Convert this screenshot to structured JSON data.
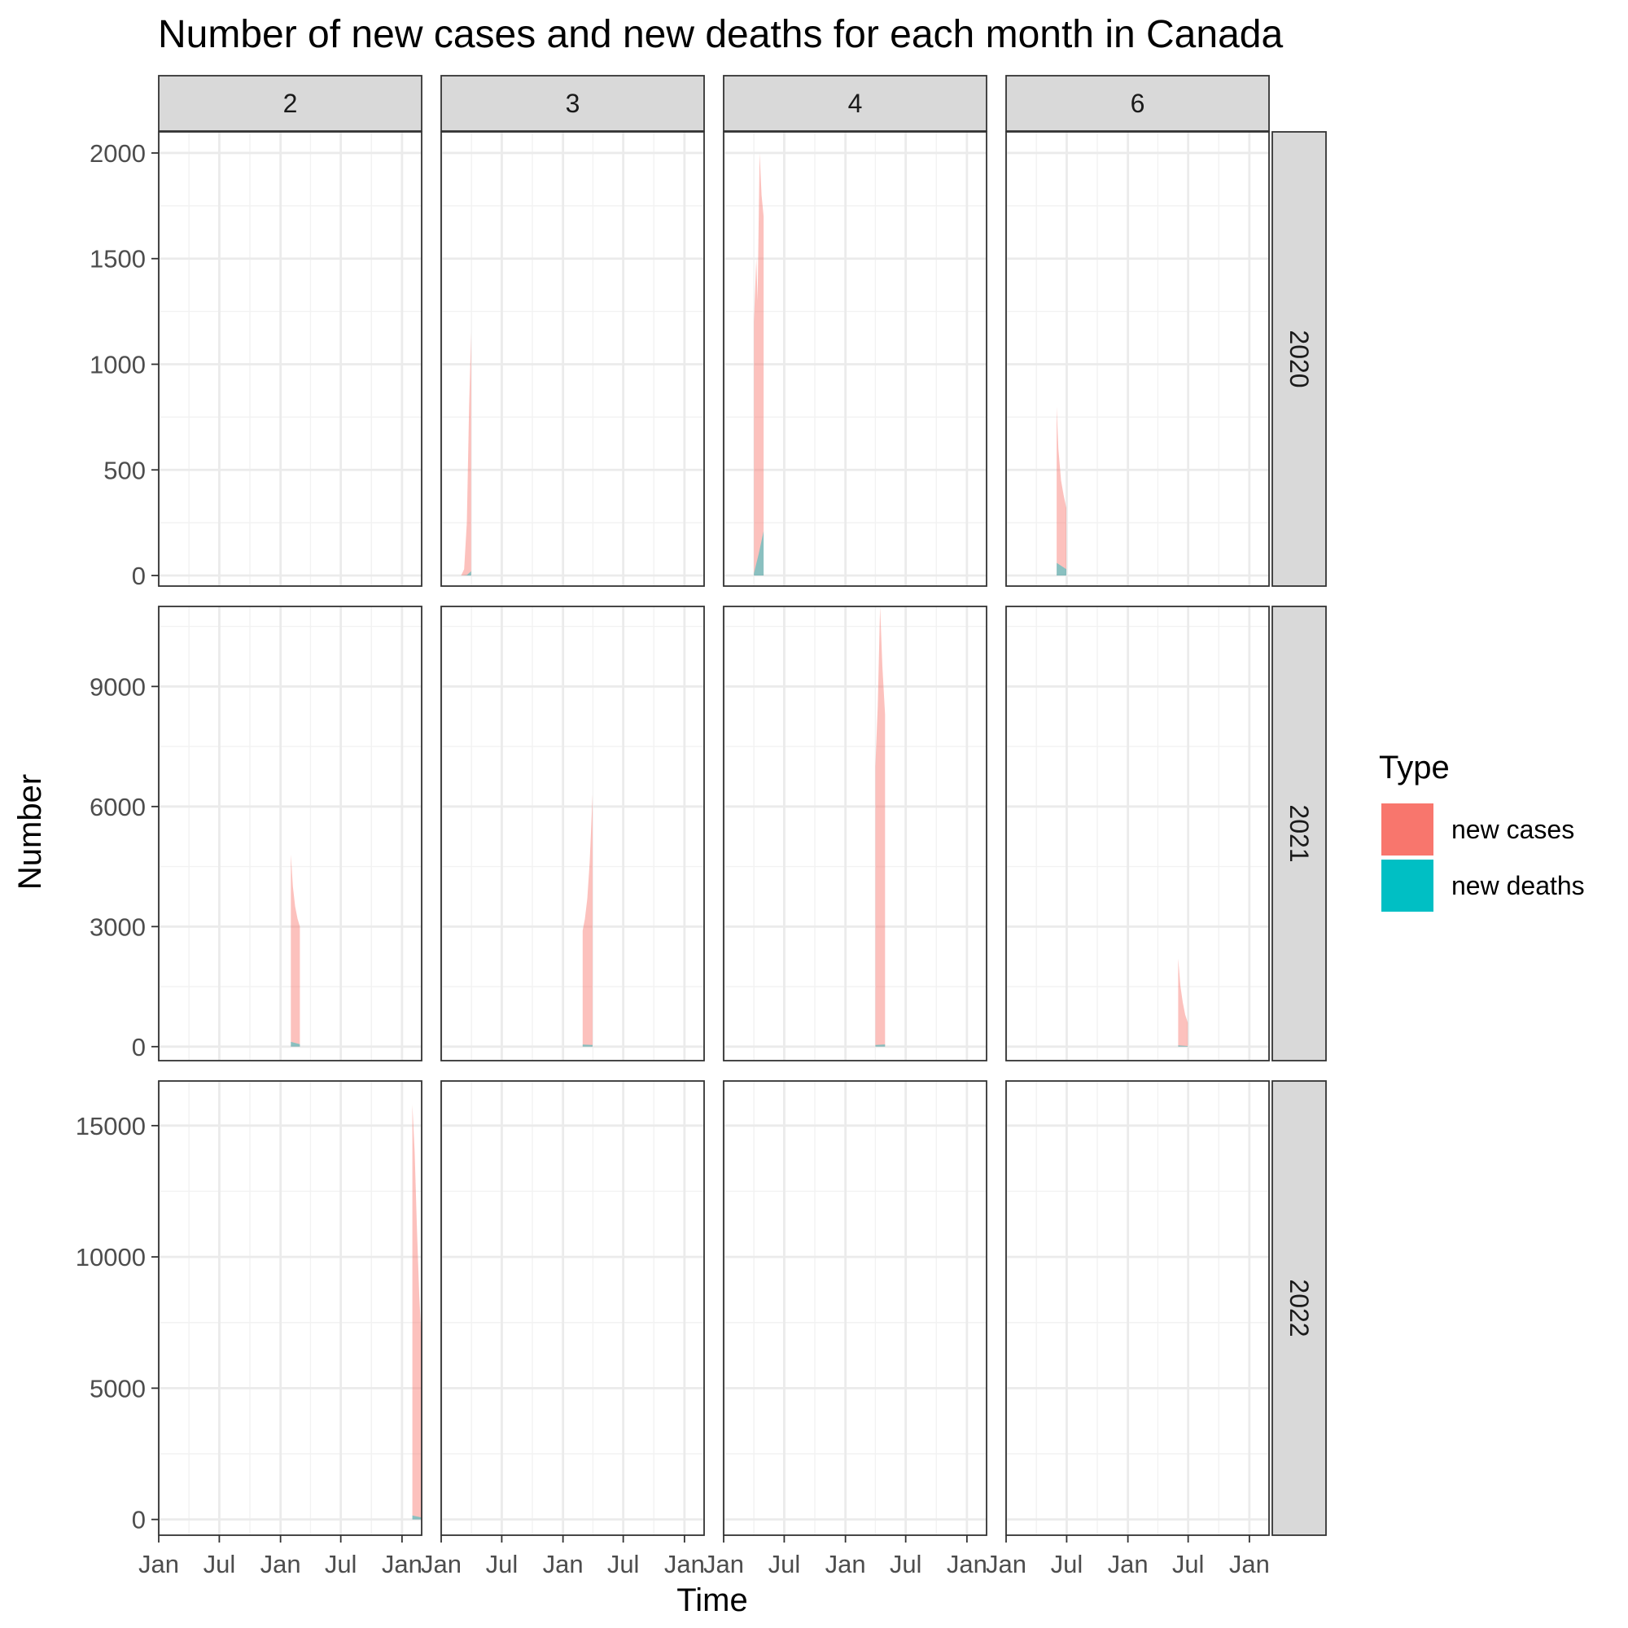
{
  "chart_data": {
    "type": "area",
    "title": "Number of new cases and new deaths for each month in Canada",
    "xlabel": "Time",
    "ylabel": "Number",
    "facet_columns": [
      "2",
      "3",
      "4",
      "6"
    ],
    "facet_rows": [
      "2020",
      "2021",
      "2022"
    ],
    "x_tick_labels": [
      "Jan",
      "Jul",
      "Jan",
      "Jul",
      "Jan"
    ],
    "x_range": [
      "2020-01",
      "2022-03"
    ],
    "grid": true,
    "legend": {
      "title": "Type",
      "position": "right",
      "entries": [
        {
          "label": "new cases",
          "color": "#F8766D"
        },
        {
          "label": "new deaths",
          "color": "#00BFC4"
        }
      ]
    },
    "rows": [
      {
        "label": "2020",
        "ylim": [
          -50,
          2100
        ],
        "yticks": [
          0,
          500,
          1000,
          1500,
          2000
        ],
        "ytick_labels": [
          "0",
          "500",
          "1000",
          "1500",
          "2000"
        ]
      },
      {
        "label": "2021",
        "ylim": [
          -350,
          11000
        ],
        "yticks": [
          0,
          3000,
          6000,
          9000
        ],
        "ytick_labels": [
          "0",
          "3000",
          "6000",
          "9000"
        ]
      },
      {
        "label": "2022",
        "ylim": [
          -600,
          16700
        ],
        "yticks": [
          0,
          5000,
          10000,
          15000
        ],
        "ytick_labels": [
          "0",
          "5000",
          "10000",
          "15000"
        ]
      }
    ],
    "panels": [
      {
        "row": "2020",
        "col": "2",
        "series": []
      },
      {
        "row": "2020",
        "col": "3",
        "series": [
          {
            "name": "new cases",
            "x": [
              "2020-03-01",
              "2020-03-10",
              "2020-03-18",
              "2020-03-25",
              "2020-03-31"
            ],
            "y": [
              0,
              30,
              250,
              800,
              1150
            ]
          },
          {
            "name": "new deaths",
            "x": [
              "2020-03-01",
              "2020-03-18",
              "2020-03-31"
            ],
            "y": [
              0,
              2,
              20
            ]
          }
        ]
      },
      {
        "row": "2020",
        "col": "4",
        "series": [
          {
            "name": "new cases",
            "x": [
              "2020-04-01",
              "2020-04-08",
              "2020-04-12",
              "2020-04-18",
              "2020-04-24",
              "2020-04-30"
            ],
            "y": [
              1200,
              1500,
              1300,
              2000,
              1800,
              1700
            ]
          },
          {
            "name": "new deaths",
            "x": [
              "2020-04-01",
              "2020-04-15",
              "2020-04-30"
            ],
            "y": [
              10,
              100,
              210
            ]
          }
        ]
      },
      {
        "row": "2020",
        "col": "6",
        "series": [
          {
            "name": "new cases",
            "x": [
              "2020-06-01",
              "2020-06-06",
              "2020-06-14",
              "2020-06-22",
              "2020-06-30"
            ],
            "y": [
              800,
              600,
              450,
              380,
              320
            ]
          },
          {
            "name": "new deaths",
            "x": [
              "2020-06-01",
              "2020-06-15",
              "2020-06-30"
            ],
            "y": [
              60,
              45,
              30
            ]
          }
        ]
      },
      {
        "row": "2021",
        "col": "2",
        "series": [
          {
            "name": "new cases",
            "x": [
              "2021-02-01",
              "2021-02-07",
              "2021-02-14",
              "2021-02-21",
              "2021-02-28"
            ],
            "y": [
              4800,
              4000,
              3500,
              3200,
              3000
            ]
          },
          {
            "name": "new deaths",
            "x": [
              "2021-02-01",
              "2021-02-28"
            ],
            "y": [
              120,
              60
            ]
          }
        ]
      },
      {
        "row": "2021",
        "col": "3",
        "series": [
          {
            "name": "new cases",
            "x": [
              "2021-03-01",
              "2021-03-08",
              "2021-03-15",
              "2021-03-22",
              "2021-03-31"
            ],
            "y": [
              2900,
              3200,
              3700,
              4600,
              6300
            ]
          },
          {
            "name": "new deaths",
            "x": [
              "2021-03-01",
              "2021-03-31"
            ],
            "y": [
              50,
              40
            ]
          }
        ]
      },
      {
        "row": "2021",
        "col": "4",
        "series": [
          {
            "name": "new cases",
            "x": [
              "2021-04-01",
              "2021-04-08",
              "2021-04-15",
              "2021-04-22",
              "2021-04-30"
            ],
            "y": [
              7000,
              8500,
              11000,
              9500,
              8300
            ]
          },
          {
            "name": "new deaths",
            "x": [
              "2021-04-01",
              "2021-04-30"
            ],
            "y": [
              40,
              55
            ]
          }
        ]
      },
      {
        "row": "2021",
        "col": "6",
        "series": [
          {
            "name": "new cases",
            "x": [
              "2021-06-01",
              "2021-06-08",
              "2021-06-15",
              "2021-06-22",
              "2021-06-30"
            ],
            "y": [
              2200,
              1500,
              1100,
              800,
              600
            ]
          },
          {
            "name": "new deaths",
            "x": [
              "2021-06-01",
              "2021-06-30"
            ],
            "y": [
              30,
              15
            ]
          }
        ]
      },
      {
        "row": "2022",
        "col": "2",
        "series": [
          {
            "name": "new cases",
            "x": [
              "2022-02-01",
              "2022-02-08",
              "2022-02-15",
              "2022-02-22",
              "2022-02-28"
            ],
            "y": [
              15800,
              14000,
              11000,
              8500,
              7000
            ]
          },
          {
            "name": "new deaths",
            "x": [
              "2022-02-01",
              "2022-02-28"
            ],
            "y": [
              150,
              80
            ]
          }
        ]
      },
      {
        "row": "2022",
        "col": "3",
        "series": []
      },
      {
        "row": "2022",
        "col": "4",
        "series": []
      },
      {
        "row": "2022",
        "col": "6",
        "series": []
      }
    ]
  }
}
